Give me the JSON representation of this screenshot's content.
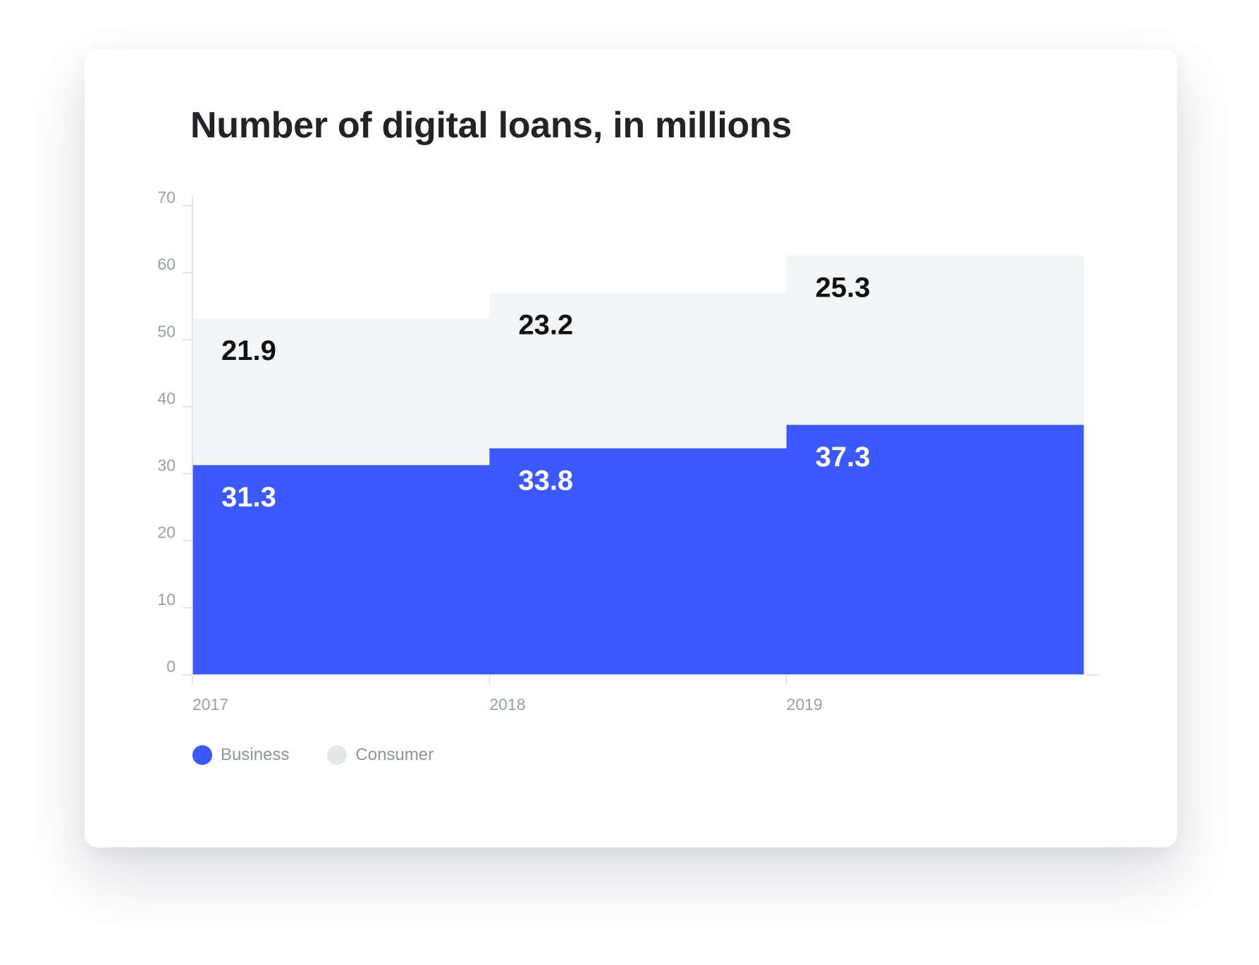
{
  "chart_data": {
    "type": "bar",
    "stacked": true,
    "title": "Number of digital loans, in millions",
    "categories": [
      "2017",
      "2018",
      "2019"
    ],
    "series": [
      {
        "name": "Business",
        "values": [
          31.3,
          33.8,
          37.3
        ],
        "color": "#3c59ff",
        "label_color": "#ffffff"
      },
      {
        "name": "Consumer",
        "values": [
          21.9,
          23.2,
          25.3
        ],
        "color": "#f4f5f7",
        "label_color": "#111111"
      }
    ],
    "ylim": [
      0,
      70
    ],
    "yticks": [
      "0",
      "10",
      "20",
      "30",
      "40",
      "50",
      "60",
      "70"
    ],
    "legend_position": "bottom-left",
    "grid": false
  }
}
